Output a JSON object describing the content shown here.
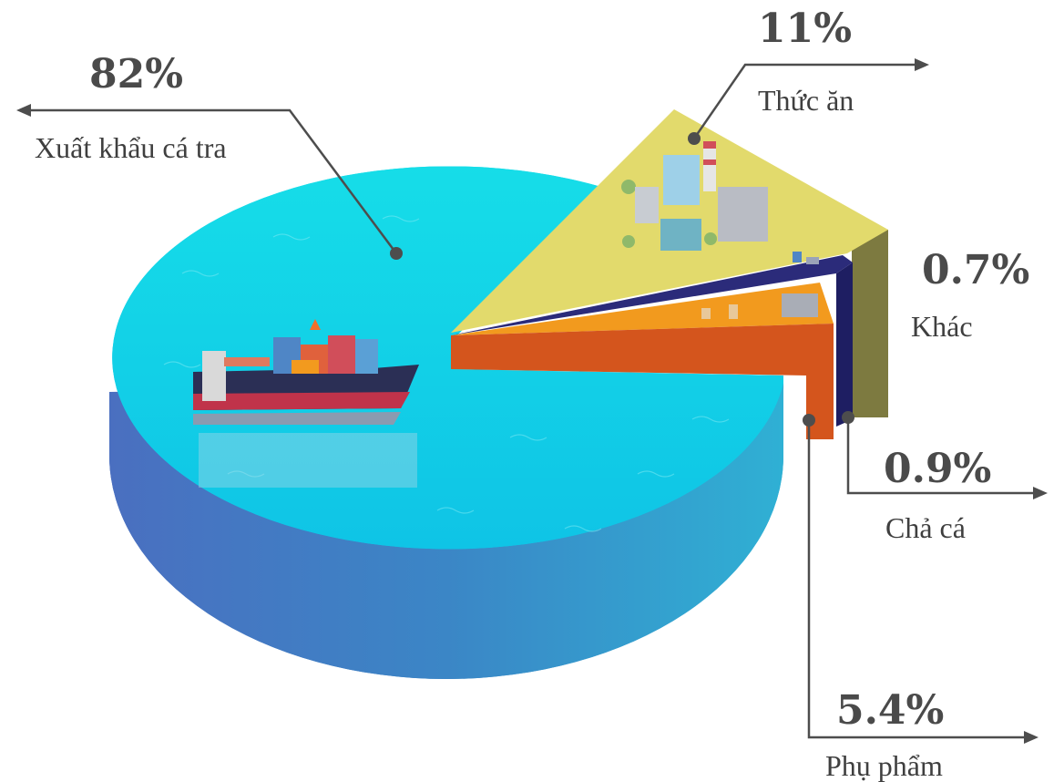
{
  "chart_data": {
    "type": "pie",
    "style": "3d exploded pie",
    "slices": [
      {
        "label": "Xuất khẩu cá tra",
        "value": 82,
        "display": "82%",
        "color": "#18d4e6",
        "side_color": "#3a78b8",
        "icon": "container-ship-icon"
      },
      {
        "label": "Thức ăn",
        "value": 11,
        "display": "11%",
        "color": "#e2d96a",
        "side_color": "#7f7a3e",
        "icon": "factory-icon"
      },
      {
        "label": "Khác",
        "value": 0.7,
        "display": "0.7%",
        "color": "#2e2e7a",
        "side_color": "#1a1a5a",
        "icon": "machinery-icon"
      },
      {
        "label": "Chả cá",
        "value": 0.9,
        "display": "0.9%",
        "color": "#f29a1e",
        "side_color": "#c85a1a",
        "icon": "processing-plant-icon"
      },
      {
        "label": "Phụ phẩm",
        "value": 5.4,
        "display": "5.4%",
        "color": "#d8561e",
        "side_color": "#c04a18"
      }
    ]
  }
}
